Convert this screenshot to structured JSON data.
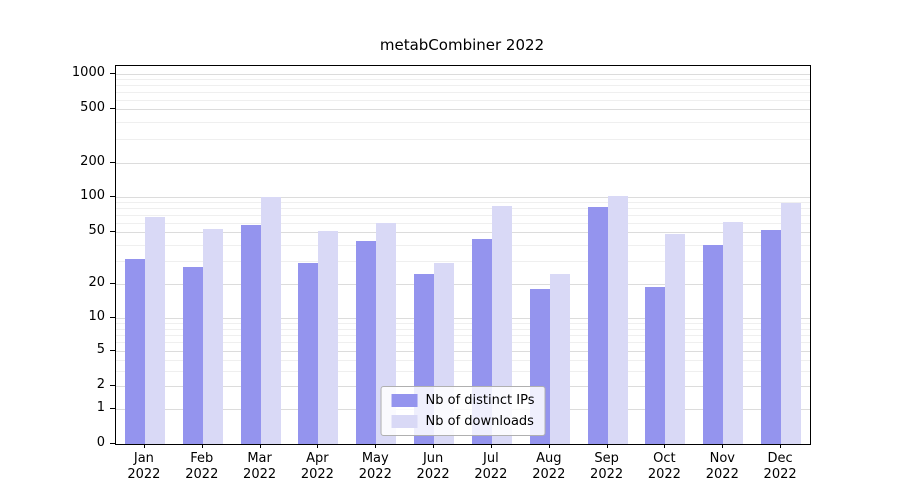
{
  "chart_data": {
    "type": "bar",
    "title": "metabCombiner 2022",
    "categories": [
      "Jan",
      "Feb",
      "Mar",
      "Apr",
      "May",
      "Jun",
      "Jul",
      "Aug",
      "Sep",
      "Oct",
      "Nov",
      "Dec"
    ],
    "year": "2022",
    "series": [
      {
        "name": "Nb of distinct IPs",
        "color": "#9494ee",
        "values": [
          31,
          27,
          57,
          29,
          43,
          24,
          44,
          18,
          82,
          19,
          40,
          52
        ]
      },
      {
        "name": "Nb of downloads",
        "color": "#d9d9f6",
        "values": [
          67,
          53,
          100,
          51,
          60,
          29,
          84,
          24,
          103,
          48,
          61,
          89
        ]
      }
    ],
    "y_ticks": [
      0,
      1,
      2,
      5,
      10,
      20,
      50,
      100,
      200,
      500,
      1000
    ],
    "y_scale": "log-like",
    "grid": true,
    "legend_position": "lower center",
    "axis_color": "#000000",
    "grid_color": "#dcdcdc"
  }
}
